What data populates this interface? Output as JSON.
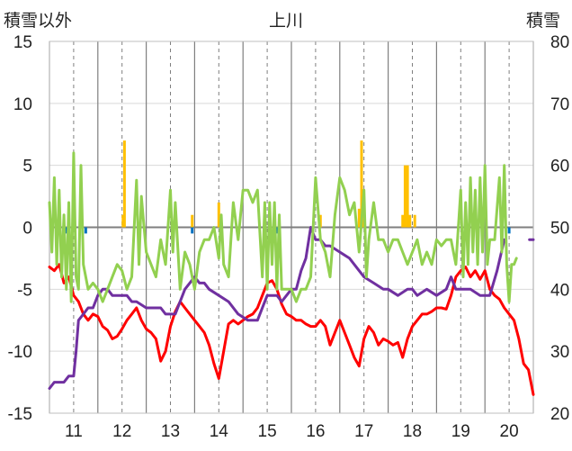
{
  "chart_data": {
    "type": "line",
    "title": "上川",
    "ylabel_left": "積雪以外",
    "ylabel_right": "積雪",
    "ylim_left": [
      -15,
      15
    ],
    "ylim_right": [
      20,
      80
    ],
    "yticks_left": [
      "15",
      "10",
      "5",
      "0",
      "-5",
      "-10",
      "-15"
    ],
    "yticks_right": [
      "80",
      "70",
      "60",
      "50",
      "40",
      "30",
      "20"
    ],
    "xticks": [
      "11",
      "12",
      "13",
      "14",
      "15",
      "16",
      "17",
      "18",
      "19",
      "20"
    ],
    "xlim": [
      10.5,
      20.5
    ],
    "grid": true,
    "colors": {
      "red": "#ff0000",
      "purple": "#7030a0",
      "green": "#92d050",
      "orange": "#ffc000",
      "blue": "#0070c0"
    },
    "series": [
      {
        "color": "red",
        "axis": "left",
        "points": [
          [
            10.5,
            -3.2
          ],
          [
            10.6,
            -3.5
          ],
          [
            10.7,
            -3
          ],
          [
            10.8,
            -4.5
          ],
          [
            10.9,
            -4
          ],
          [
            11.0,
            -5.5
          ],
          [
            11.1,
            -6
          ],
          [
            11.2,
            -7
          ],
          [
            11.3,
            -7.5
          ],
          [
            11.4,
            -7
          ],
          [
            11.5,
            -7.2
          ],
          [
            11.6,
            -8
          ],
          [
            11.7,
            -8.3
          ],
          [
            11.8,
            -9
          ],
          [
            11.9,
            -8.8
          ],
          [
            12.0,
            -8.2
          ],
          [
            12.1,
            -7.5
          ],
          [
            12.2,
            -7
          ],
          [
            12.3,
            -6.5
          ],
          [
            12.4,
            -7.5
          ],
          [
            12.5,
            -8.2
          ],
          [
            12.6,
            -8.5
          ],
          [
            12.7,
            -9
          ],
          [
            12.8,
            -10.8
          ],
          [
            12.9,
            -10
          ],
          [
            13.0,
            -8
          ],
          [
            13.1,
            -6.8
          ],
          [
            13.2,
            -6
          ],
          [
            13.3,
            -6.5
          ],
          [
            13.4,
            -7
          ],
          [
            13.5,
            -7.5
          ],
          [
            13.6,
            -8
          ],
          [
            13.7,
            -8.5
          ],
          [
            13.8,
            -9.5
          ],
          [
            13.9,
            -11
          ],
          [
            14.0,
            -12.2
          ],
          [
            14.1,
            -10
          ],
          [
            14.2,
            -7.8
          ],
          [
            14.3,
            -7.5
          ],
          [
            14.4,
            -7.8
          ],
          [
            14.5,
            -7.5
          ],
          [
            14.6,
            -7.2
          ],
          [
            14.7,
            -7
          ],
          [
            14.8,
            -6.5
          ],
          [
            14.9,
            -5.5
          ],
          [
            15.0,
            -4.5
          ],
          [
            15.1,
            -4.3
          ],
          [
            15.2,
            -5
          ],
          [
            15.3,
            -6.2
          ],
          [
            15.4,
            -7
          ],
          [
            15.5,
            -7.2
          ],
          [
            15.6,
            -7.5
          ],
          [
            15.7,
            -7.5
          ],
          [
            15.8,
            -7.8
          ],
          [
            15.9,
            -8
          ],
          [
            16.0,
            -8
          ],
          [
            16.1,
            -7.5
          ],
          [
            16.2,
            -8
          ],
          [
            16.3,
            -9.5
          ],
          [
            16.4,
            -8.5
          ],
          [
            16.5,
            -7.5
          ],
          [
            16.6,
            -8.5
          ],
          [
            16.7,
            -9.5
          ],
          [
            16.8,
            -10.5
          ],
          [
            16.9,
            -11.2
          ],
          [
            17.0,
            -9
          ],
          [
            17.1,
            -8
          ],
          [
            17.2,
            -8.5
          ],
          [
            17.3,
            -9.5
          ],
          [
            17.4,
            -9
          ],
          [
            17.5,
            -9.2
          ],
          [
            17.6,
            -9.5
          ],
          [
            17.7,
            -9.3
          ],
          [
            17.8,
            -10.5
          ],
          [
            17.9,
            -9
          ],
          [
            18.0,
            -8
          ],
          [
            18.1,
            -7.5
          ],
          [
            18.2,
            -7
          ],
          [
            18.3,
            -7
          ],
          [
            18.4,
            -6.8
          ],
          [
            18.5,
            -6.5
          ],
          [
            18.6,
            -6.5
          ],
          [
            18.7,
            -6.6
          ],
          [
            18.8,
            -5.5
          ],
          [
            18.9,
            -4
          ],
          [
            19.0,
            -3.5
          ],
          [
            19.1,
            -3.2
          ],
          [
            19.2,
            -4
          ],
          [
            19.3,
            -3.5
          ],
          [
            19.4,
            -4.2
          ],
          [
            19.5,
            -3.5
          ],
          [
            19.6,
            -5
          ],
          [
            19.7,
            -5.5
          ],
          [
            19.8,
            -5.8
          ],
          [
            19.9,
            -6.5
          ],
          [
            20.0,
            -7
          ],
          [
            20.1,
            -7.5
          ],
          [
            20.2,
            -9
          ],
          [
            20.3,
            -11
          ],
          [
            20.4,
            -11.5
          ],
          [
            20.5,
            -13.5
          ]
        ]
      },
      {
        "color": "purple",
        "axis": "right",
        "points": [
          [
            10.5,
            24
          ],
          [
            10.6,
            25
          ],
          [
            10.7,
            25
          ],
          [
            10.8,
            25
          ],
          [
            10.9,
            26
          ],
          [
            11.0,
            26
          ],
          [
            11.05,
            30
          ],
          [
            11.1,
            35
          ],
          [
            11.2,
            36
          ],
          [
            11.3,
            37
          ],
          [
            11.4,
            37
          ],
          [
            11.5,
            39
          ],
          [
            11.6,
            40
          ],
          [
            11.7,
            40
          ],
          [
            11.8,
            39
          ],
          [
            11.9,
            39
          ],
          [
            12.0,
            39
          ],
          [
            12.1,
            39
          ],
          [
            12.2,
            38
          ],
          [
            12.3,
            38
          ],
          [
            12.5,
            37
          ],
          [
            12.8,
            37
          ],
          [
            12.9,
            36
          ],
          [
            13.1,
            36
          ],
          [
            13.3,
            40
          ],
          [
            13.4,
            41
          ],
          [
            13.5,
            42
          ],
          [
            13.6,
            41
          ],
          [
            13.7,
            41
          ],
          [
            13.8,
            40
          ],
          [
            14.0,
            39
          ],
          [
            14.2,
            38
          ],
          [
            14.4,
            36
          ],
          [
            14.6,
            35
          ],
          [
            14.8,
            35
          ],
          [
            15.0,
            39
          ],
          [
            15.2,
            39
          ],
          [
            15.3,
            38
          ],
          [
            15.4,
            39
          ],
          [
            15.5,
            40
          ],
          [
            15.6,
            40
          ],
          [
            15.7,
            43
          ],
          [
            15.8,
            45
          ],
          [
            15.9,
            50
          ],
          [
            16.0,
            48
          ],
          [
            16.1,
            48
          ],
          [
            16.2,
            47
          ],
          [
            16.3,
            47
          ],
          [
            16.5,
            46
          ],
          [
            16.7,
            45
          ],
          [
            16.9,
            43
          ],
          [
            17.0,
            42
          ],
          [
            17.2,
            41
          ],
          [
            17.4,
            40
          ],
          [
            17.5,
            40
          ],
          [
            17.7,
            39
          ],
          [
            17.9,
            40
          ],
          [
            18.0,
            40
          ],
          [
            18.1,
            39
          ],
          [
            18.3,
            40
          ],
          [
            18.5,
            39
          ],
          [
            18.7,
            40
          ],
          [
            18.8,
            42
          ],
          [
            18.9,
            40
          ],
          [
            19.0,
            40
          ],
          [
            19.2,
            40
          ],
          [
            19.4,
            39
          ],
          [
            19.6,
            39
          ],
          [
            19.75,
            43
          ],
          [
            19.9,
            48
          ]
        ]
      },
      {
        "color": "green",
        "axis": "left",
        "points": [
          [
            10.5,
            2
          ],
          [
            10.55,
            -2
          ],
          [
            10.6,
            4
          ],
          [
            10.65,
            -3
          ],
          [
            10.7,
            3
          ],
          [
            10.75,
            -4
          ],
          [
            10.8,
            1
          ],
          [
            10.85,
            -5
          ],
          [
            10.9,
            2
          ],
          [
            10.95,
            -6
          ],
          [
            11.0,
            6
          ],
          [
            11.05,
            -4
          ],
          [
            11.1,
            -5
          ],
          [
            11.15,
            5
          ],
          [
            11.2,
            -3
          ],
          [
            11.3,
            -5
          ],
          [
            11.4,
            -4.5
          ],
          [
            11.5,
            -5
          ],
          [
            11.6,
            -6
          ],
          [
            11.7,
            -5
          ],
          [
            11.8,
            -4
          ],
          [
            11.9,
            -3
          ],
          [
            12.0,
            -3.5
          ],
          [
            12.1,
            -5
          ],
          [
            12.2,
            -4
          ],
          [
            12.3,
            3.8
          ],
          [
            12.35,
            -3
          ],
          [
            12.4,
            2.5
          ],
          [
            12.5,
            -2
          ],
          [
            12.6,
            -3
          ],
          [
            12.7,
            -4
          ],
          [
            12.8,
            -1
          ],
          [
            12.9,
            -3
          ],
          [
            13.0,
            3
          ],
          [
            13.05,
            -2
          ],
          [
            13.1,
            2
          ],
          [
            13.2,
            -5
          ],
          [
            13.3,
            -2
          ],
          [
            13.4,
            -3
          ],
          [
            13.5,
            -5
          ],
          [
            13.6,
            -2
          ],
          [
            13.7,
            -1
          ],
          [
            13.8,
            -1
          ],
          [
            13.9,
            0
          ],
          [
            14.0,
            -2.5
          ],
          [
            14.05,
            1
          ],
          [
            14.1,
            -3
          ],
          [
            14.2,
            -4
          ],
          [
            14.3,
            2
          ],
          [
            14.4,
            -1
          ],
          [
            14.5,
            3
          ],
          [
            14.6,
            3
          ],
          [
            14.7,
            2
          ],
          [
            14.8,
            3
          ],
          [
            14.9,
            -4
          ],
          [
            14.95,
            2
          ],
          [
            15.0,
            -5
          ],
          [
            15.05,
            2
          ],
          [
            15.1,
            -3
          ],
          [
            15.15,
            2
          ],
          [
            15.2,
            -5
          ],
          [
            15.25,
            1
          ],
          [
            15.3,
            -5
          ],
          [
            15.4,
            -5
          ],
          [
            15.5,
            -5
          ],
          [
            15.6,
            -6
          ],
          [
            15.7,
            -5
          ],
          [
            15.8,
            -5
          ],
          [
            15.9,
            -4
          ],
          [
            16.0,
            4
          ],
          [
            16.1,
            -1
          ],
          [
            16.2,
            -2
          ],
          [
            16.3,
            -4
          ],
          [
            16.4,
            1
          ],
          [
            16.5,
            4
          ],
          [
            16.6,
            3
          ],
          [
            16.7,
            1
          ],
          [
            16.8,
            2
          ],
          [
            16.9,
            -2
          ],
          [
            17.0,
            3
          ],
          [
            17.05,
            -4
          ],
          [
            17.1,
            -1
          ],
          [
            17.2,
            2
          ],
          [
            17.3,
            -1
          ],
          [
            17.4,
            -1
          ],
          [
            17.5,
            -2
          ],
          [
            17.6,
            -1
          ],
          [
            17.7,
            -1
          ],
          [
            17.8,
            -2
          ],
          [
            17.9,
            -3
          ],
          [
            18.0,
            -2
          ],
          [
            18.1,
            -1
          ],
          [
            18.2,
            -3
          ],
          [
            18.3,
            -2
          ],
          [
            18.4,
            -3
          ],
          [
            18.5,
            -1
          ],
          [
            18.6,
            -1.5
          ],
          [
            18.7,
            -1
          ],
          [
            18.8,
            -1
          ],
          [
            18.9,
            -3
          ],
          [
            19.0,
            3
          ],
          [
            19.05,
            -4
          ],
          [
            19.1,
            2
          ],
          [
            19.15,
            -3
          ],
          [
            19.2,
            4
          ],
          [
            19.25,
            -2
          ],
          [
            19.3,
            3
          ],
          [
            19.35,
            -3
          ],
          [
            19.4,
            4
          ],
          [
            19.45,
            -2
          ],
          [
            19.5,
            5
          ],
          [
            19.55,
            -3
          ],
          [
            19.6,
            -1
          ],
          [
            19.7,
            -1
          ],
          [
            19.8,
            4
          ],
          [
            19.85,
            -2
          ],
          [
            19.9,
            5
          ],
          [
            19.95,
            -3
          ],
          [
            20.0,
            -6
          ],
          [
            20.05,
            -3
          ],
          [
            20.1,
            -3
          ],
          [
            20.15,
            -2.5
          ]
        ]
      }
    ],
    "bars": [
      {
        "color": "orange",
        "axis": "left",
        "points": [
          [
            12.02,
            1
          ],
          [
            12.05,
            7
          ],
          [
            13.45,
            1
          ],
          [
            14.0,
            2
          ],
          [
            16.1,
            1
          ],
          [
            16.9,
            1.5
          ],
          [
            16.95,
            7
          ],
          [
            17.0,
            1
          ],
          [
            17.8,
            1
          ],
          [
            17.85,
            5
          ],
          [
            17.9,
            5
          ],
          [
            17.95,
            1
          ],
          [
            18.05,
            1
          ]
        ]
      },
      {
        "color": "blue",
        "axis": "left",
        "points": [
          [
            10.65,
            -0.5
          ],
          [
            10.85,
            -0.5
          ],
          [
            11.25,
            -0.5
          ],
          [
            13.45,
            -0.5
          ],
          [
            15.2,
            -0.5
          ],
          [
            20.0,
            -0.5
          ]
        ]
      }
    ],
    "extra_segments": [
      {
        "color": "purple",
        "axis": "right",
        "points": [
          [
            20.42,
            48
          ],
          [
            20.5,
            48
          ]
        ]
      }
    ]
  }
}
